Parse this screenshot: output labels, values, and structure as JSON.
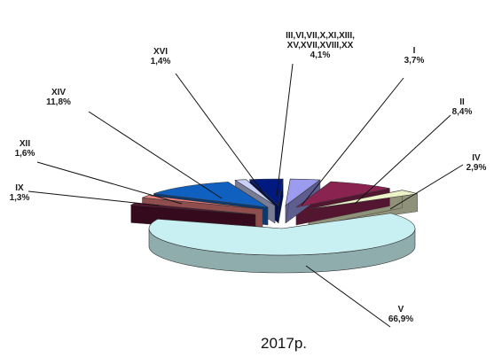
{
  "chart_data": {
    "type": "pie",
    "title": "2017р.",
    "slices": [
      {
        "label": "I",
        "label_lines": [
          "I"
        ],
        "value_label": "3,7%",
        "value": 3.7,
        "color": "#9b9bf0"
      },
      {
        "label": "II",
        "label_lines": [
          "II"
        ],
        "value_label": "8,4%",
        "value": 8.4,
        "color": "#8a2350"
      },
      {
        "label": "IV",
        "label_lines": [
          "IV"
        ],
        "value_label": "2,9%",
        "value": 2.9,
        "color": "#eef2c8"
      },
      {
        "label": "V",
        "label_lines": [
          "V"
        ],
        "value_label": "66,9%",
        "value": 66.9,
        "color": "#c8f0f2"
      },
      {
        "label": "IX",
        "label_lines": [
          "IX"
        ],
        "value_label": "1,3%",
        "value": 1.3,
        "color": "#5a1030"
      },
      {
        "label": "XII",
        "label_lines": [
          "XII"
        ],
        "value_label": "1,6%",
        "value": 1.6,
        "color": "#f08080"
      },
      {
        "label": "XIV",
        "label_lines": [
          "XIV"
        ],
        "value_label": "11,8%",
        "value": 11.8,
        "color": "#1060c0"
      },
      {
        "label": "XVI",
        "label_lines": [
          "XVI"
        ],
        "value_label": "1,4%",
        "value": 1.4,
        "color": "#c8d0f8"
      },
      {
        "label": "III,VI,VII,X,XI,XIII,XV,XVII,XVIII,XX",
        "label_lines": [
          "III,VI,VII,X,XI,XIII,",
          "XV,XVII,XVIII,XX"
        ],
        "value_label": "4,1%",
        "value": 4.1,
        "color": "#001a80"
      }
    ]
  }
}
